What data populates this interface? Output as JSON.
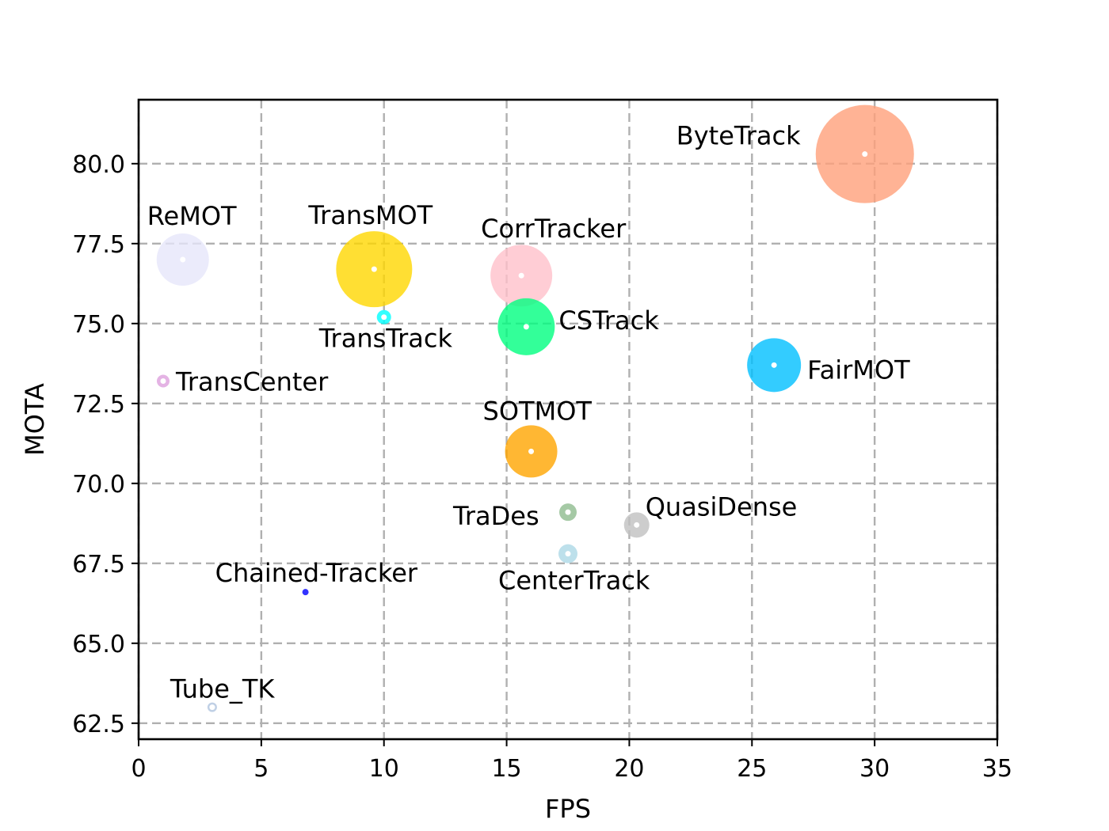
{
  "chart_data": {
    "type": "scatter",
    "title": "",
    "xlabel": "FPS",
    "ylabel": "MOTA",
    "xlim": [
      0,
      35
    ],
    "ylim": [
      62.0,
      82.0
    ],
    "xticks": [
      "0",
      "5",
      "10",
      "15",
      "20",
      "25",
      "30",
      "35"
    ],
    "yticks": [
      "62.5",
      "65.0",
      "67.5",
      "70.0",
      "72.5",
      "75.0",
      "77.5",
      "80.0"
    ],
    "grid": true,
    "marker_alpha": 0.8,
    "points": [
      {
        "name": "ByteTrack",
        "x": 29.6,
        "y": 80.3,
        "size": 62,
        "color": "#FFA07A"
      },
      {
        "name": "ReMOT",
        "x": 1.8,
        "y": 77.0,
        "size": 33,
        "color": "#E6E6FA"
      },
      {
        "name": "TransMOT",
        "x": 9.6,
        "y": 76.7,
        "size": 48,
        "color": "#FFD700"
      },
      {
        "name": "TransTrack",
        "x": 10.0,
        "y": 75.2,
        "size": 9,
        "color": "#00FFFF"
      },
      {
        "name": "CorrTracker",
        "x": 15.6,
        "y": 76.5,
        "size": 39,
        "color": "#FFC0CB"
      },
      {
        "name": "CSTrack",
        "x": 15.8,
        "y": 74.9,
        "size": 36,
        "color": "#00FF7F"
      },
      {
        "name": "FairMOT",
        "x": 25.9,
        "y": 73.7,
        "size": 34,
        "color": "#00BFFF"
      },
      {
        "name": "TransCenter",
        "x": 1.0,
        "y": 73.2,
        "size": 8,
        "color": "#DDA0DD"
      },
      {
        "name": "SOTMOT",
        "x": 16.0,
        "y": 71.0,
        "size": 33,
        "color": "#FFA500"
      },
      {
        "name": "TraDes",
        "x": 17.5,
        "y": 69.1,
        "size": 11,
        "color": "#8FBC8F"
      },
      {
        "name": "QuasiDense",
        "x": 20.3,
        "y": 68.7,
        "size": 16,
        "color": "#C0C0C0"
      },
      {
        "name": "CenterTrack",
        "x": 17.5,
        "y": 67.8,
        "size": 12,
        "color": "#ADD8E6"
      },
      {
        "name": "Chained-Tracker",
        "x": 6.8,
        "y": 66.6,
        "size": 4,
        "color": "#0000FF"
      },
      {
        "name": "Tube_TK",
        "x": 3.0,
        "y": 63.0,
        "size": 6,
        "color": "#B0C4DE"
      }
    ]
  }
}
